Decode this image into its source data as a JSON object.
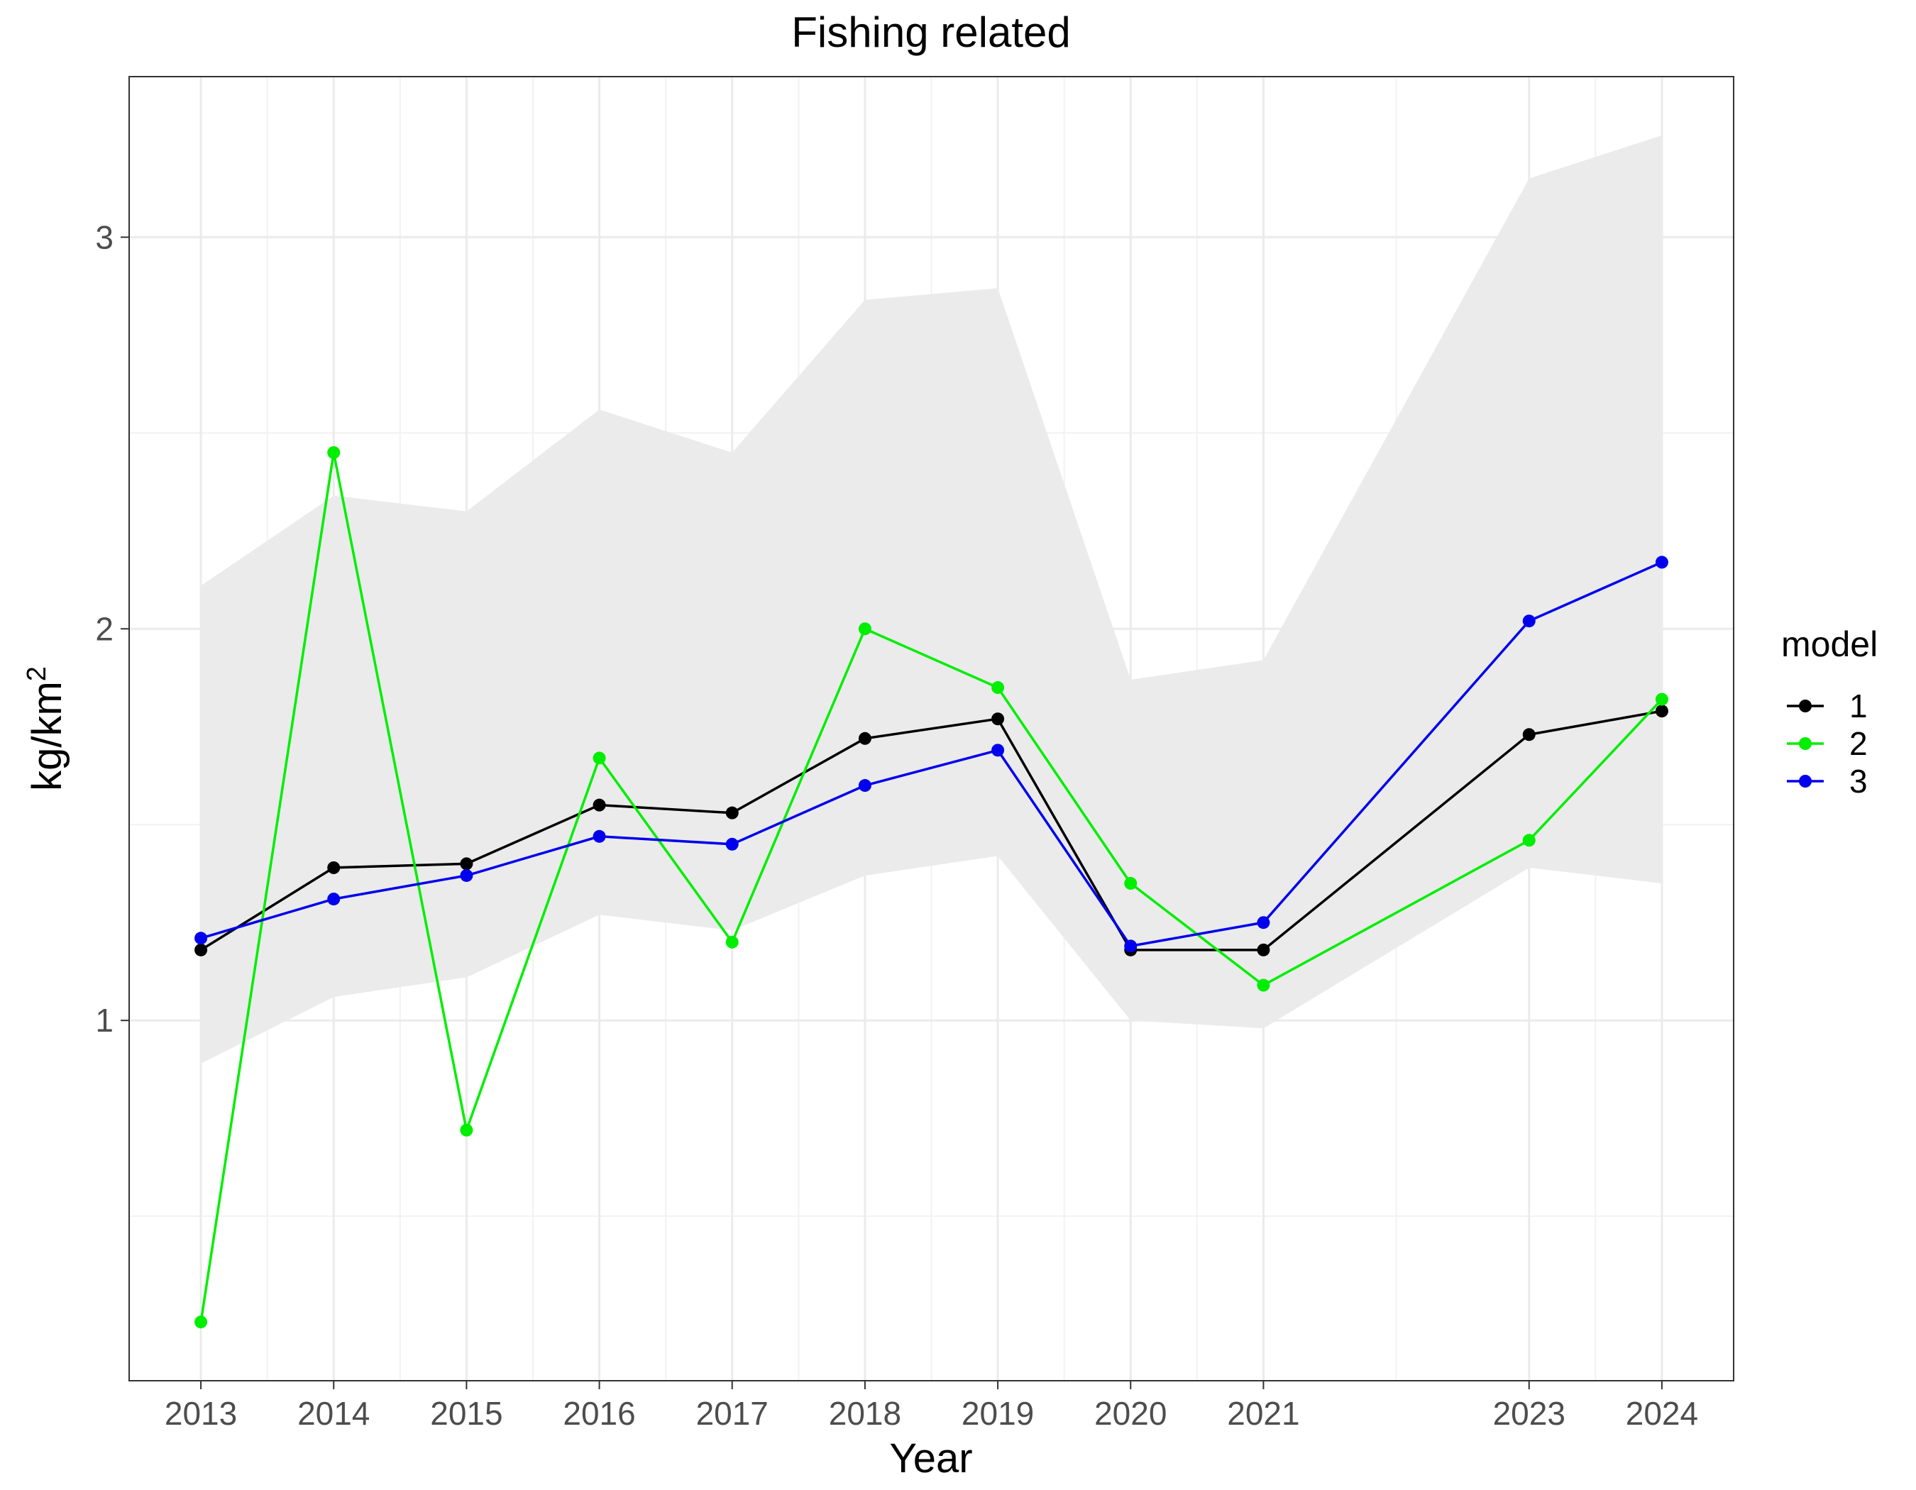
{
  "chart_data": {
    "type": "line",
    "title": "Fishing related",
    "xlabel": "Year",
    "ylabel_base": "kg/km",
    "ylabel_sup": "2",
    "x": [
      2013,
      2014,
      2015,
      2016,
      2017,
      2018,
      2019,
      2020,
      2021,
      2023,
      2024
    ],
    "x_tick_labels": [
      "2013",
      "2014",
      "2015",
      "2016",
      "2017",
      "2018",
      "2019",
      "2020",
      "2021",
      "2023",
      "2024"
    ],
    "y_tick_values": [
      1,
      2,
      3
    ],
    "y_tick_labels": [
      "1",
      "2",
      "3"
    ],
    "xlim": [
      2012.46,
      2024.54
    ],
    "ylim": [
      0.08,
      3.41
    ],
    "ribbon": {
      "lower": [
        0.89,
        1.06,
        1.11,
        1.27,
        1.23,
        1.37,
        1.42,
        1.0,
        0.98,
        1.39,
        1.35
      ],
      "upper": [
        2.11,
        2.34,
        2.3,
        2.56,
        2.45,
        2.84,
        2.87,
        1.87,
        1.92,
        3.15,
        3.26
      ],
      "color": "#ebebeb"
    },
    "series": [
      {
        "name": "1",
        "color": "#000000",
        "values": [
          1.18,
          1.39,
          1.4,
          1.55,
          1.53,
          1.72,
          1.77,
          1.18,
          1.18,
          1.73,
          1.79
        ]
      },
      {
        "name": "2",
        "color": "#00ee00",
        "values": [
          0.23,
          2.45,
          0.72,
          1.67,
          1.2,
          2.0,
          1.85,
          1.35,
          1.09,
          1.46,
          1.82
        ]
      },
      {
        "name": "3",
        "color": "#0000ee",
        "values": [
          1.21,
          1.31,
          1.37,
          1.47,
          1.45,
          1.6,
          1.69,
          1.19,
          1.25,
          2.02,
          2.17
        ]
      }
    ],
    "grid": true,
    "legend": {
      "title": "model",
      "position": "right"
    }
  }
}
